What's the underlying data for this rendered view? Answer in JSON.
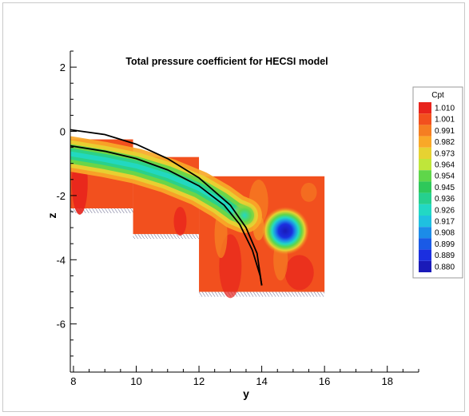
{
  "chart_data": {
    "type": "heatmap",
    "title": "Total pressure coefficient for HECSI model",
    "xlabel": "y",
    "ylabel": "z",
    "xlim": [
      7.9,
      19
    ],
    "ylim": [
      -7.5,
      2.5
    ],
    "x_ticks": [
      8,
      10,
      12,
      14,
      16,
      18
    ],
    "y_ticks": [
      2,
      0,
      -2,
      -4,
      -6
    ],
    "grid": false,
    "legend": {
      "title": "Cpt",
      "placement": "right",
      "levels": [
        1.01,
        1.001,
        0.991,
        0.982,
        0.973,
        0.964,
        0.954,
        0.945,
        0.936,
        0.926,
        0.917,
        0.908,
        0.899,
        0.889,
        0.88
      ],
      "labels": [
        "1.010",
        "1.001",
        "0.991",
        "0.982",
        "0.973",
        "0.964",
        "0.954",
        "0.945",
        "0.936",
        "0.926",
        "0.917",
        "0.908",
        "0.899",
        "0.889",
        "0.880"
      ],
      "colors": [
        "#e8241c",
        "#f2501e",
        "#f57e22",
        "#f9a828",
        "#e6d232",
        "#bfe63a",
        "#5fd64a",
        "#2ec85a",
        "#26d08e",
        "#22d8c4",
        "#1fc0e0",
        "#1c8ce8",
        "#1a5ae6",
        "#1b2fe0",
        "#1a1ab8"
      ]
    },
    "regions": [
      {
        "name": "panel-1",
        "y": [
          7.9,
          9.9
        ],
        "z": [
          -2.4,
          -0.25
        ]
      },
      {
        "name": "panel-2",
        "y": [
          9.9,
          12.0
        ],
        "z": [
          -3.2,
          -0.8
        ]
      },
      {
        "name": "panel-3",
        "y": [
          12.0,
          16.0
        ],
        "z": [
          -5.0,
          -1.4
        ]
      }
    ],
    "wake_band": [
      [
        7.9,
        -0.7
      ],
      [
        9,
        -0.88
      ],
      [
        10,
        -1.08
      ],
      [
        11,
        -1.38
      ],
      [
        12,
        -1.78
      ],
      [
        12.7,
        -2.18
      ],
      [
        13.15,
        -2.5
      ],
      [
        13.45,
        -2.62
      ]
    ],
    "vortex": {
      "y": 14.75,
      "z": -3.1,
      "cpt_min": 0.88
    },
    "curves": [
      {
        "name": "upper-curve",
        "points": [
          [
            7.9,
            0.05
          ],
          [
            9,
            -0.1
          ],
          [
            10,
            -0.4
          ],
          [
            11,
            -0.85
          ],
          [
            12,
            -1.45
          ],
          [
            13,
            -2.3
          ],
          [
            13.5,
            -3.0
          ],
          [
            13.85,
            -3.8
          ],
          [
            14.0,
            -4.8
          ]
        ]
      },
      {
        "name": "lower-curve",
        "points": [
          [
            7.9,
            -0.45
          ],
          [
            9,
            -0.62
          ],
          [
            10,
            -0.85
          ],
          [
            11,
            -1.2
          ],
          [
            12,
            -1.7
          ],
          [
            12.8,
            -2.3
          ],
          [
            13.3,
            -2.9
          ],
          [
            13.7,
            -3.7
          ],
          [
            13.95,
            -4.5
          ],
          [
            14.0,
            -4.8
          ]
        ]
      }
    ]
  }
}
